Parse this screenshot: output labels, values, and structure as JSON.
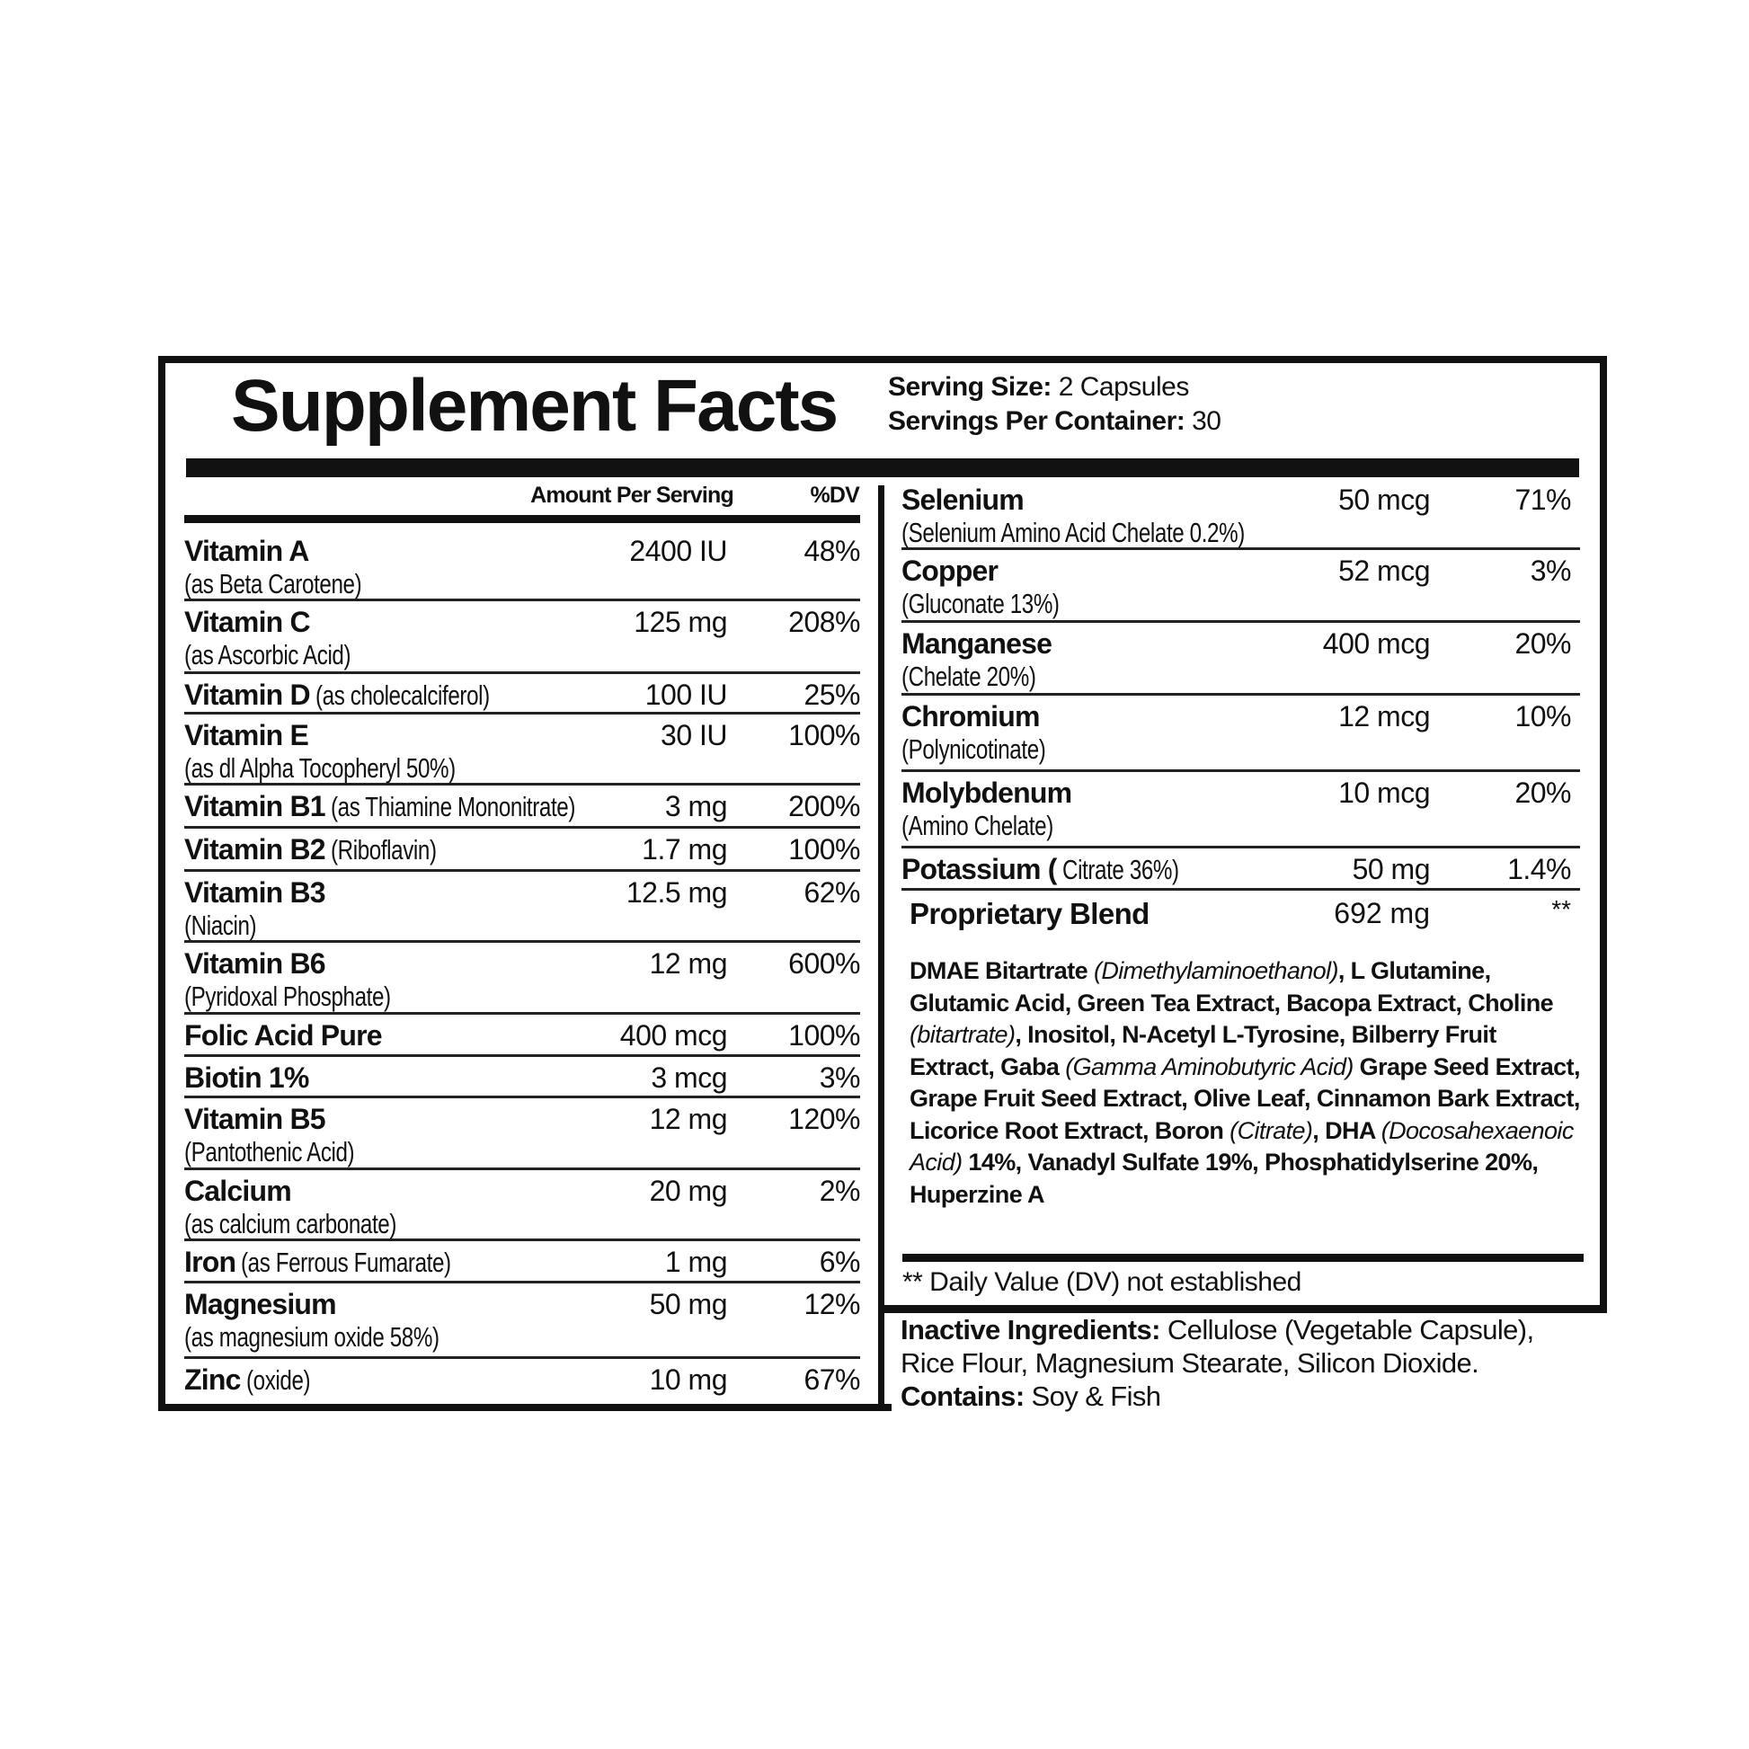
{
  "title": "Supplement Facts",
  "serving_size_label": "Serving Size:",
  "serving_size": "2 Capsules",
  "servings_per_container_label": "Servings Per Container:",
  "servings_per_container": "30",
  "header": {
    "amount": "Amount Per Serving",
    "dv": "%DV"
  },
  "left_nutrients": [
    {
      "name": "Vitamin A",
      "sub": "(as Beta Carotene)",
      "inline": "",
      "amount": "2400 IU",
      "dv": "48%"
    },
    {
      "name": "Vitamin C",
      "sub": "(as Ascorbic Acid)",
      "inline": "",
      "amount": "125 mg",
      "dv": "208%"
    },
    {
      "name": "Vitamin D",
      "sub": "",
      "inline": "(as cholecalciferol)",
      "amount": "100 IU",
      "dv": "25%"
    },
    {
      "name": "Vitamin E",
      "sub": "(as dl Alpha Tocopheryl 50%)",
      "inline": "",
      "amount": "30 IU",
      "dv": "100%"
    },
    {
      "name": "Vitamin B1",
      "sub": "",
      "inline": "(as Thiamine Mononitrate)",
      "amount": "3 mg",
      "dv": "200%"
    },
    {
      "name": "Vitamin B2",
      "sub": "",
      "inline": "(Riboflavin)",
      "amount": "1.7 mg",
      "dv": "100%"
    },
    {
      "name": "Vitamin B3",
      "sub": "(Niacin)",
      "inline": "",
      "amount": "12.5 mg",
      "dv": "62%"
    },
    {
      "name": "Vitamin B6",
      "sub": "(Pyridoxal Phosphate)",
      "inline": "",
      "amount": "12 mg",
      "dv": "600%"
    },
    {
      "name": "Folic Acid Pure",
      "sub": "",
      "inline": "",
      "amount": "400 mcg",
      "dv": "100%"
    },
    {
      "name": "Biotin 1%",
      "sub": "",
      "inline": "",
      "amount": "3 mcg",
      "dv": "3%"
    },
    {
      "name": "Vitamin B5",
      "sub": "(Pantothenic Acid)",
      "inline": "",
      "amount": "12 mg",
      "dv": "120%"
    },
    {
      "name": "Calcium",
      "sub": "(as calcium carbonate)",
      "inline": "",
      "amount": "20 mg",
      "dv": "2%"
    },
    {
      "name": "Iron",
      "sub": "",
      "inline": "(as Ferrous Fumarate)",
      "amount": "1 mg",
      "dv": "6%"
    },
    {
      "name": "Magnesium",
      "sub": "(as magnesium oxide 58%)",
      "inline": "",
      "amount": "50 mg",
      "dv": "12%"
    },
    {
      "name": "Zinc",
      "sub": "",
      "inline": "(oxide)",
      "amount": "10 mg",
      "dv": "67%"
    }
  ],
  "right_nutrients": [
    {
      "name": "Selenium",
      "sub": "(Selenium Amino Acid Chelate 0.2%)",
      "inline": "",
      "amount": "50 mcg",
      "dv": "71%"
    },
    {
      "name": "Copper",
      "sub": "(Gluconate 13%)",
      "inline": "",
      "amount": "52 mcg",
      "dv": "3%"
    },
    {
      "name": "Manganese",
      "sub": "(Chelate 20%)",
      "inline": "",
      "amount": "400 mcg",
      "dv": "20%"
    },
    {
      "name": "Chromium",
      "sub": "(Polynicotinate)",
      "inline": "",
      "amount": "12 mcg",
      "dv": "10%"
    },
    {
      "name": "Molybdenum",
      "sub": "(Amino Chelate)",
      "inline": "",
      "amount": "10 mcg",
      "dv": "20%"
    },
    {
      "name": "Potassium (",
      "sub": "",
      "inline": "Citrate 36%)",
      "amount": "50 mg",
      "dv": "1.4%"
    }
  ],
  "blend": {
    "name": "Proprietary Blend",
    "amount": "692 mg",
    "dv": "**",
    "parts": [
      {
        "t": "DMAE Bitartrate ",
        "i": false
      },
      {
        "t": "(Dimethylaminoethanol)",
        "i": true
      },
      {
        "t": ", L Glutamine, Glutamic Acid, Green Tea Extract, Bacopa Extract, Choline ",
        "i": false
      },
      {
        "t": "(bitartrate)",
        "i": true
      },
      {
        "t": ", Inositol, N-Acetyl L-Tyrosine, Bilberry Fruit Extract, Gaba ",
        "i": false
      },
      {
        "t": "(Gamma Aminobutyric Acid)",
        "i": true
      },
      {
        "t": " Grape Seed Extract, Grape Fruit Seed Extract, Olive Leaf, Cinnamon Bark Extract, Licorice Root Extract, Boron ",
        "i": false
      },
      {
        "t": "(Citrate)",
        "i": true
      },
      {
        "t": ", DHA ",
        "i": false
      },
      {
        "t": "(Docosahexaenoic Acid)",
        "i": true
      },
      {
        "t": " 14%, Vanadyl Sulfate 19%, Phosphatidylserine 20%, Huperzine A",
        "i": false
      }
    ]
  },
  "dv_note": "** Daily Value (DV) not established",
  "inactive": {
    "label": "Inactive Ingredients:",
    "text1": " Cellulose (Vegetable Capsule),",
    "text2": "Rice Flour, Magnesium Stearate, Silicon Dioxide.",
    "contains_label": "Contains:",
    "contains": " Soy & Fish"
  }
}
